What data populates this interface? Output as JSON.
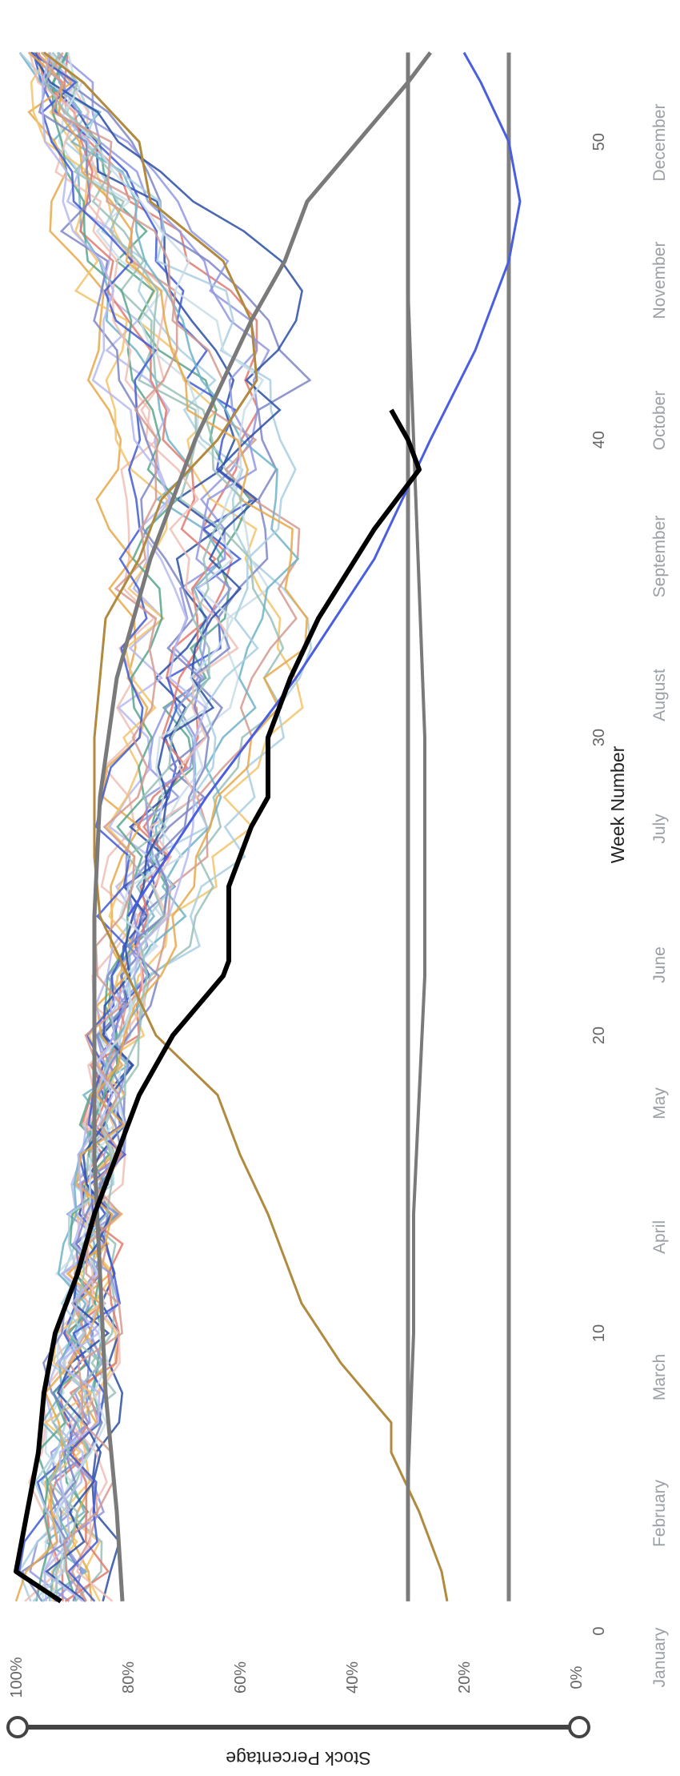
{
  "chart_data": {
    "type": "line",
    "orientation": "rotated-90-clockwise",
    "xlabel": "Week Number",
    "ylabel": "Stock Percentage",
    "xlim": [
      1,
      53
    ],
    "ylim": [
      0,
      100
    ],
    "x_ticks": [
      0,
      10,
      20,
      30,
      40,
      50
    ],
    "y_ticks": [
      "0%",
      "20%",
      "40%",
      "60%",
      "80%",
      "100%"
    ],
    "months": [
      "January",
      "February",
      "March",
      "April",
      "May",
      "June",
      "July",
      "August",
      "September",
      "October",
      "November",
      "December"
    ],
    "grid": false,
    "legend": "none",
    "reference_lines": [
      {
        "color": "#7f7f7f",
        "y": 30
      },
      {
        "color": "#7f7f7f",
        "y": 12
      }
    ],
    "highlight_series": [
      {
        "color": "#000000",
        "width": 6,
        "x": [
          1,
          2,
          4,
          6,
          8,
          10,
          12,
          14,
          16,
          18,
          20,
          22,
          22.5,
          25,
          27,
          28,
          30,
          32,
          34,
          37,
          39,
          40,
          41
        ],
        "y": [
          92,
          100,
          98,
          96,
          95,
          93,
          89,
          86,
          82,
          78,
          72,
          63,
          62,
          62,
          58,
          55,
          55,
          51,
          46,
          36,
          28,
          30,
          33
        ]
      },
      {
        "color": "#7a7a7a",
        "width": 5,
        "x": [
          1,
          4,
          8,
          12,
          16,
          20,
          24,
          28,
          32,
          36,
          40,
          44,
          46,
          48,
          50,
          52,
          53
        ],
        "y": [
          81,
          82,
          84,
          85,
          86,
          86,
          86,
          85,
          82,
          76,
          68,
          58,
          52,
          48,
          39,
          30,
          26
        ]
      },
      {
        "color": "#7a7a7a",
        "width": 4,
        "x": [
          1,
          5,
          10,
          14,
          18,
          22,
          26,
          30,
          35,
          40,
          45,
          48,
          53
        ],
        "y": [
          30,
          30,
          29,
          29,
          28,
          27,
          27,
          27,
          28,
          29,
          30,
          30,
          30
        ]
      },
      {
        "color": "#4a5ee0",
        "width": 3,
        "x": [
          24,
          28,
          32,
          36,
          40,
          43,
          46,
          48,
          50,
          52,
          53
        ],
        "y": [
          80,
          66,
          50,
          36,
          26,
          18,
          12,
          10,
          12,
          17,
          20
        ]
      },
      {
        "color": "#b08a3e",
        "width": 3,
        "x": [
          1,
          2,
          4,
          6,
          7,
          9,
          11,
          12,
          14,
          16,
          18,
          20,
          22,
          24,
          26,
          28,
          30,
          32,
          34,
          36,
          38,
          40,
          42,
          44,
          46,
          48,
          50,
          52,
          53
        ],
        "y": [
          23,
          24,
          28,
          33,
          33,
          42,
          49,
          51,
          55,
          60,
          64,
          75,
          80,
          85,
          86,
          86,
          86,
          85,
          84,
          78,
          74,
          64,
          57,
          58,
          63,
          76,
          78,
          88,
          95
        ]
      }
    ],
    "background_series_palette": [
      "#e07a6e",
      "#f2c46d",
      "#6fb3c8",
      "#5aa58c",
      "#8f98df",
      "#a9cfe0",
      "#efc0b5",
      "#2c4fa3",
      "#3f5bd4",
      "#c9dde8",
      "#7d86c4",
      "#e6a84a",
      "#9ac0b8",
      "#b6b9ef",
      "#d49a8f"
    ]
  }
}
